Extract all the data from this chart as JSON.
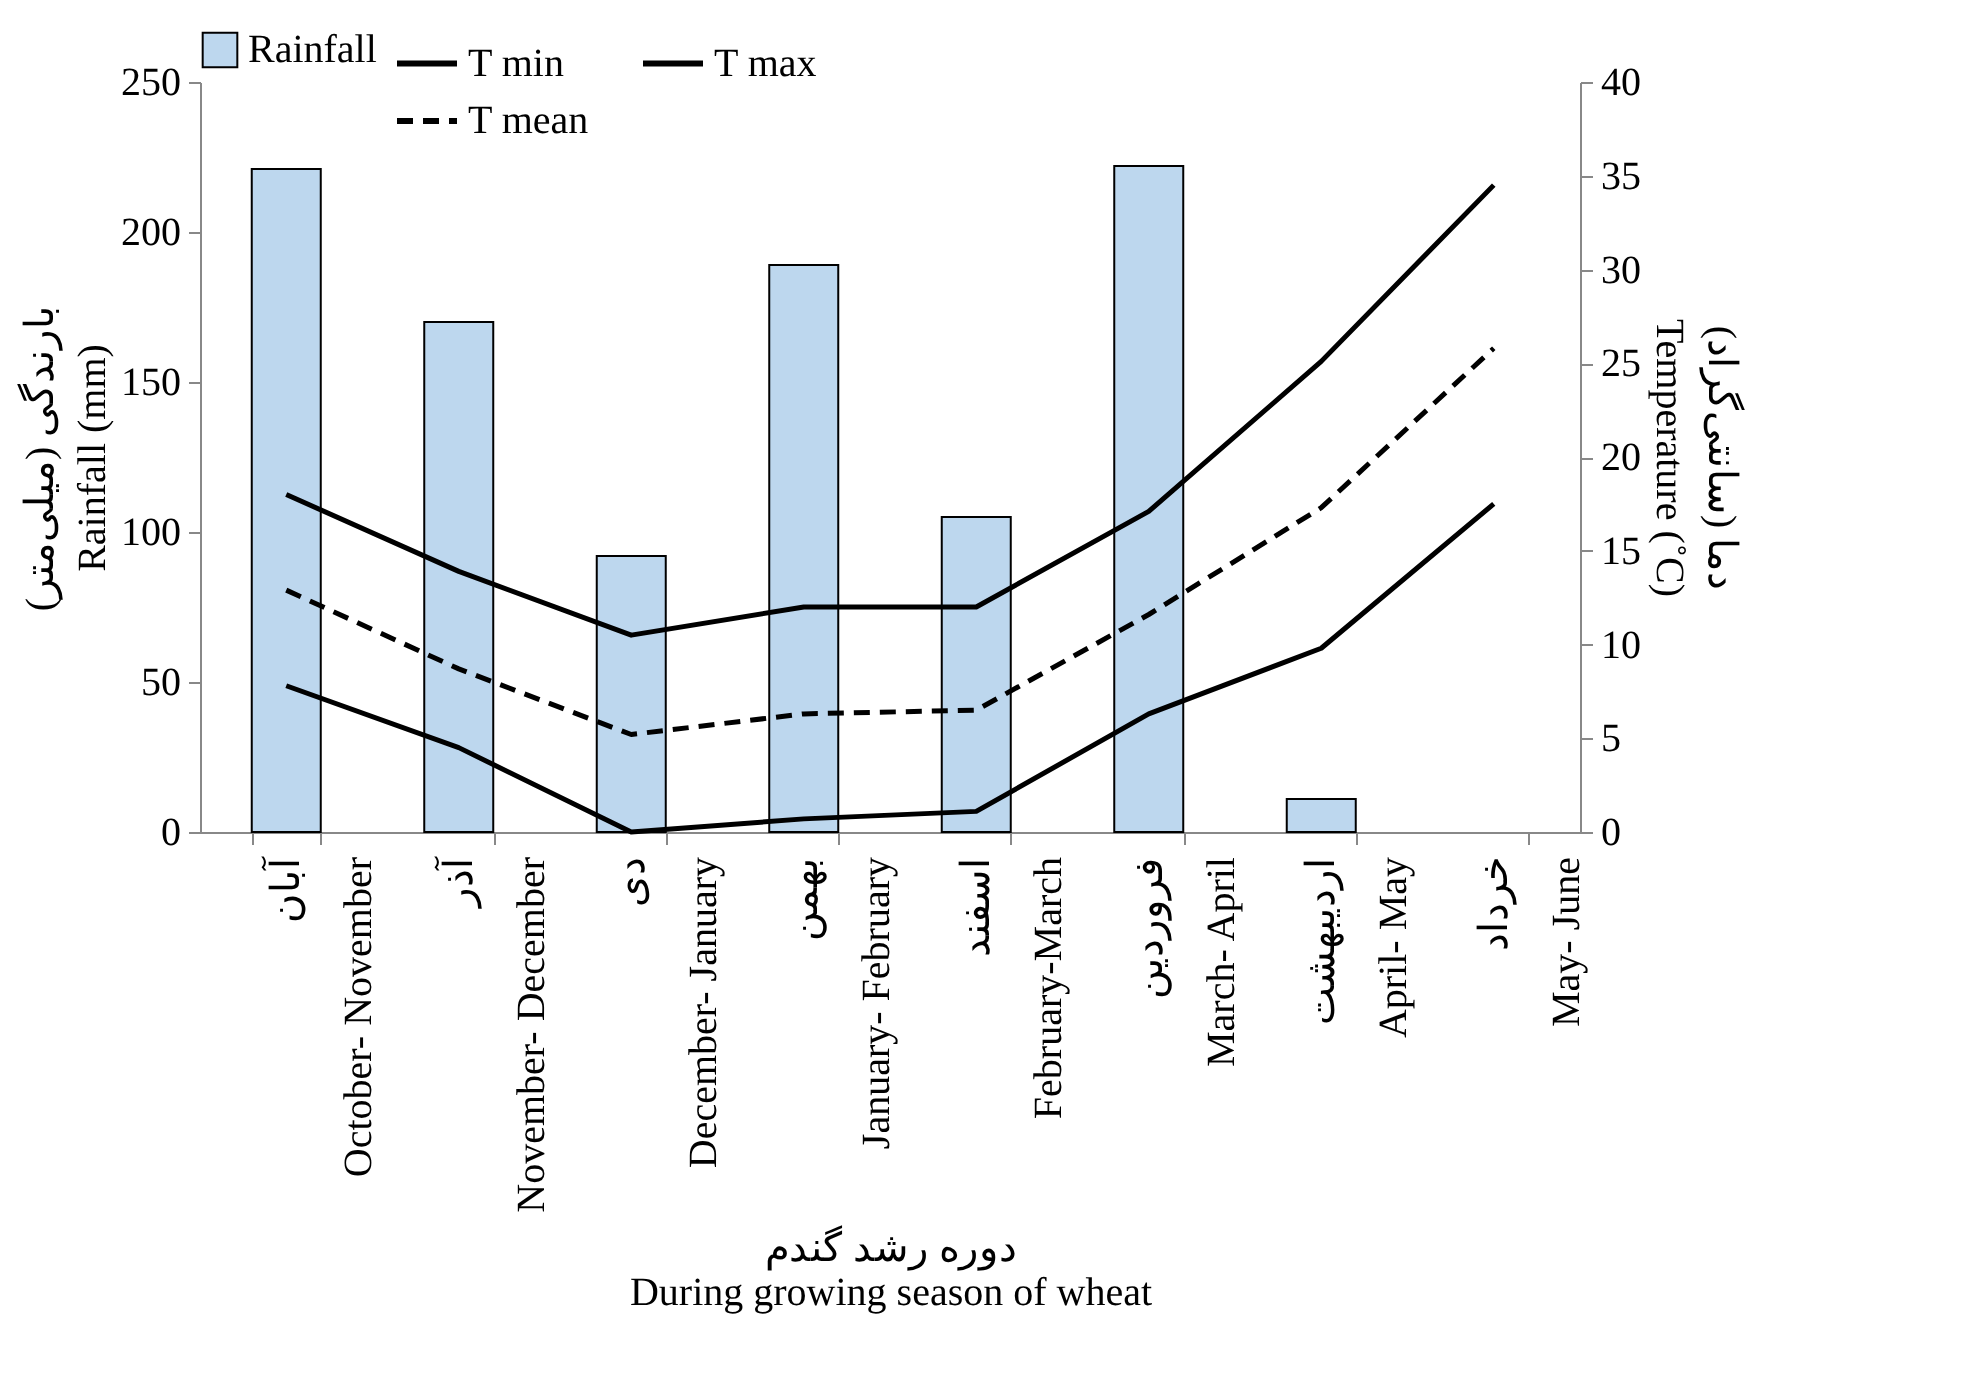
{
  "chart_data": {
    "type": "bar",
    "categories": [
      "آبان\nOctober- November",
      "آذر\nNovember- December",
      "دی\nDecember- January",
      "بهمن\nJanuary- February",
      "اسفند\nFebruary-March",
      "فروردین\nMarch- April",
      "اردیبهشت\nApril- May",
      "خرداد\nMay- June"
    ],
    "xlabel": "دوره رشد گندم\nDuring growing season of wheat",
    "ylabel": "بارندگی (میلی‌متر)\nRainfall (mm)",
    "y2label": "دما (سانتی‌گراد)\nTemperature (˚C)",
    "series": [
      {
        "name": "Rainfall",
        "color": "#bdd7ee",
        "values": [
          221,
          170,
          92,
          189,
          105,
          222,
          11,
          0
        ]
      },
      {
        "name": "T min",
        "type": "line",
        "axis": "y2",
        "color": "#000000",
        "line_style": "solid",
        "values": [
          7.8,
          4.5,
          0,
          0.7,
          1.1,
          6.3,
          9.8,
          17.5
        ]
      },
      {
        "name": "T max",
        "type": "line",
        "axis": "y2",
        "color": "#000000",
        "line_style": "solid",
        "values": [
          18,
          13.9,
          10.5,
          12,
          12,
          17.1,
          25.1,
          34.5
        ]
      },
      {
        "name": "T mean",
        "type": "line",
        "axis": "y2",
        "color": "#000000",
        "line_style": "dashed",
        "values": [
          12.9,
          8.7,
          5.2,
          6.3,
          6.5,
          11.6,
          17.3,
          25.8
        ]
      }
    ],
    "ylim": [
      0,
      250
    ],
    "yticks": [
      0,
      50,
      100,
      150,
      200,
      250
    ],
    "y2lim": [
      0,
      40
    ],
    "y2ticks": [
      0,
      5,
      10,
      15,
      20,
      25,
      30,
      35,
      40
    ],
    "legend": "top",
    "grid": false
  }
}
